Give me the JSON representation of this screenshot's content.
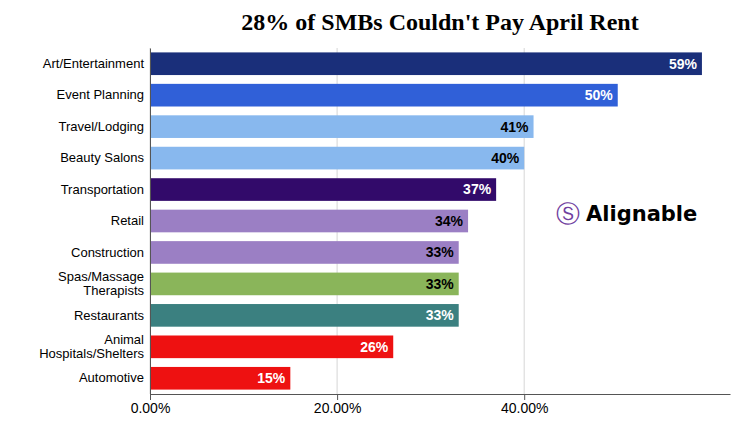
{
  "chart_data": {
    "type": "bar",
    "orientation": "horizontal",
    "title": "28% of SMBs Couldn't Pay April Rent",
    "categories": [
      "Automotive",
      "Animal\nHospitals/Shelters",
      "Restaurants",
      "Spas/Massage\nTherapists",
      "Construction",
      "Retail",
      "Transportation",
      "Beauty Salons",
      "Travel/Lodging",
      "Event Planning",
      "Art/Entertainment"
    ],
    "values": [
      15,
      26,
      33,
      33,
      33,
      34,
      37,
      40,
      41,
      50,
      59
    ],
    "value_labels": [
      "15%",
      "26%",
      "33%",
      "33%",
      "33%",
      "34%",
      "37%",
      "40%",
      "41%",
      "50%",
      "59%"
    ],
    "data_labels": true,
    "colors": [
      "#ee1111",
      "#ee1111",
      "#3b8080",
      "#8ab55a",
      "#9b7fc4",
      "#9b7fc4",
      "#320a6a",
      "#88b8ee",
      "#88b8ee",
      "#3060d8",
      "#1a2f7a"
    ],
    "xlim": [
      0,
      62
    ],
    "xticks": [
      {
        "value": 0,
        "label": "0.00%"
      },
      {
        "value": 20,
        "label": "20.00%"
      },
      {
        "value": 40,
        "label": "40.00%"
      }
    ],
    "grid": true,
    "annotations": [
      {
        "text": "Ⓢ",
        "color": "#7040a0"
      },
      {
        "text": "Alignable",
        "color": "black"
      }
    ]
  }
}
